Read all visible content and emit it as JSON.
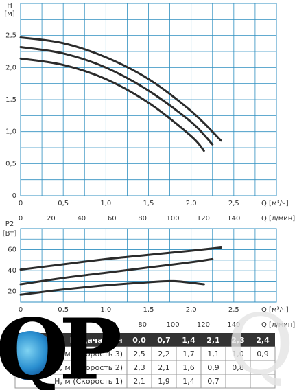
{
  "chart_data": [
    {
      "type": "line",
      "y_label": "H",
      "y_unit": "[м]",
      "x_label": "Q [м³/ч]",
      "x2_label": "Q [л/мин]",
      "xlim": [
        0,
        3
      ],
      "ylim": [
        0,
        3
      ],
      "x2lim": [
        0,
        168
      ],
      "xticks": [
        0,
        {
          "value": 0.5,
          "label": "0,5"
        },
        {
          "value": 1,
          "label": "1,0"
        },
        {
          "value": 1.5,
          "label": "1,5"
        },
        {
          "value": 2,
          "label": "2,0"
        },
        {
          "value": 2.5,
          "label": "2,5"
        }
      ],
      "yticks": [
        0,
        {
          "value": 0.5,
          "label": "0,5"
        },
        {
          "value": 1,
          "label": "1,0"
        },
        {
          "value": 1.5,
          "label": "1,5"
        },
        {
          "value": 2,
          "label": "2,0"
        },
        {
          "value": 2.5,
          "label": "2,5"
        }
      ],
      "x2ticks": [
        0,
        20,
        40,
        60,
        80,
        100,
        120,
        140
      ],
      "xgrid": [
        0,
        0.25,
        0.5,
        0.75,
        1,
        1.25,
        1.5,
        1.75,
        2,
        2.25,
        2.5,
        2.75,
        3
      ],
      "ygrid": [
        0,
        0.25,
        0.5,
        0.75,
        1,
        1.25,
        1.5,
        1.75,
        2,
        2.25,
        2.5,
        2.75,
        3
      ],
      "grid": true,
      "grid_color": "#2e8fc0",
      "series": [
        {
          "color": "#2b2b2b",
          "x": [
            0,
            0.5,
            1,
            1.5,
            2,
            2.35
          ],
          "values": [
            2.47,
            2.38,
            2.16,
            1.82,
            1.32,
            0.86
          ]
        },
        {
          "color": "#2b2b2b",
          "x": [
            0,
            0.5,
            1,
            1.5,
            2,
            2.25
          ],
          "values": [
            2.32,
            2.22,
            2.0,
            1.64,
            1.15,
            0.8
          ]
        },
        {
          "color": "#2b2b2b",
          "x": [
            0,
            0.5,
            1,
            1.5,
            2,
            2.15
          ],
          "values": [
            2.14,
            2.04,
            1.82,
            1.45,
            0.93,
            0.7
          ]
        }
      ]
    },
    {
      "type": "line",
      "y_label": "P2",
      "y_unit": "[Вт]",
      "x_label": "Q [м³/ч]",
      "x2_label": "Q [л/мин]",
      "xlim": [
        0,
        3
      ],
      "ylim": [
        10,
        80
      ],
      "x2lim": [
        0,
        168
      ],
      "xticks": [
        0,
        {
          "value": 0.5,
          "label": "0,5"
        },
        {
          "value": 1,
          "label": "1,0"
        },
        {
          "value": 1.5,
          "label": "1,5"
        },
        {
          "value": 2,
          "label": "2,0"
        },
        {
          "value": 2.5,
          "label": "2,5"
        }
      ],
      "yticks": [
        20,
        40,
        60
      ],
      "x2ticks": [
        0,
        20,
        40,
        60,
        80,
        100,
        120,
        140
      ],
      "xgrid": [
        0,
        0.25,
        0.5,
        0.75,
        1,
        1.25,
        1.5,
        1.75,
        2,
        2.25,
        2.5,
        2.75,
        3
      ],
      "ygrid": [
        10,
        20,
        30,
        40,
        50,
        60,
        70,
        80
      ],
      "grid": true,
      "grid_color": "#2e8fc0",
      "series": [
        {
          "color": "#2b2b2b",
          "x": [
            0,
            0.5,
            1,
            1.5,
            2,
            2.35
          ],
          "values": [
            41,
            46,
            51,
            55,
            59,
            62
          ]
        },
        {
          "color": "#2b2b2b",
          "x": [
            0,
            0.5,
            1,
            1.5,
            2,
            2.25
          ],
          "values": [
            27,
            33,
            38,
            43,
            48,
            51
          ]
        },
        {
          "color": "#2b2b2b",
          "x": [
            0,
            0.5,
            1,
            1.5,
            1.8,
            2.15
          ],
          "values": [
            17,
            22,
            26,
            29,
            30,
            27
          ]
        }
      ]
    }
  ],
  "table": {
    "header": [
      "Подача м³/ч",
      "0,0",
      "0,7",
      "1,4",
      "2,1",
      "2,3",
      "2,4"
    ],
    "rows": [
      [
        "Н, м (Скорость 3)",
        "2,5",
        "2,2",
        "1,7",
        "1,1",
        "1,0",
        "0,9"
      ],
      [
        "Н, м (Скорость 2)",
        "2,3",
        "2,1",
        "1,6",
        "0,9",
        "0,8"
      ],
      [
        "Н, м (Скорость 1)",
        "2,1",
        "1,9",
        "1,4",
        "0,7"
      ]
    ]
  },
  "logo": "QP"
}
